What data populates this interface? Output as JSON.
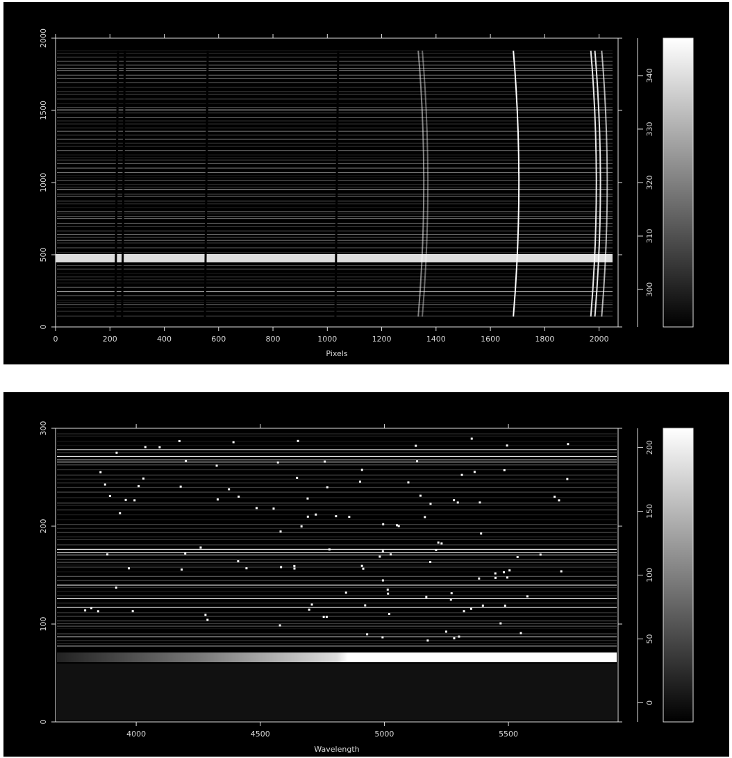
{
  "chart_data": [
    {
      "type": "image",
      "xlabel": "Pixels",
      "xlim": [
        0,
        2070
      ],
      "xticks": [
        0,
        200,
        400,
        600,
        800,
        1000,
        1200,
        1400,
        1600,
        1800,
        2000
      ],
      "ylim": [
        0,
        2000
      ],
      "yticks": [
        0,
        500,
        1000,
        1500,
        2000
      ],
      "colorbar": {
        "lim": [
          293,
          347
        ],
        "ticks": [
          300,
          310,
          320,
          330,
          340
        ]
      }
    },
    {
      "type": "image",
      "xlabel": "Wavelength",
      "xlim": [
        3675,
        5942
      ],
      "xticks": [
        4000,
        4500,
        5000,
        5500
      ],
      "ylim": [
        0,
        300
      ],
      "yticks": [
        0,
        100,
        200,
        300
      ],
      "colorbar": {
        "lim": [
          -15,
          215
        ],
        "ticks": [
          0,
          50,
          100,
          150,
          200
        ]
      }
    }
  ]
}
